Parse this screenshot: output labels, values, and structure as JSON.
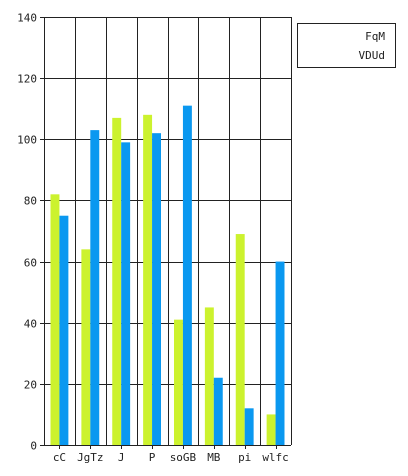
{
  "chart_data": {
    "type": "bar",
    "categories": [
      "cC",
      "JgTz",
      "J",
      "P",
      "soGB",
      "MB",
      "pi",
      "wlfc"
    ],
    "series": [
      {
        "name": "FqM",
        "color": "#ccf22e",
        "values": [
          82,
          64,
          107,
          108,
          41,
          45,
          69,
          10
        ]
      },
      {
        "name": "VDUd",
        "color": "#0a98f0",
        "values": [
          75,
          103,
          99,
          102,
          111,
          22,
          12,
          60
        ]
      }
    ],
    "yticks": [
      0,
      20,
      40,
      60,
      80,
      100,
      120,
      140
    ],
    "ylim": [
      0,
      140
    ],
    "grid": true,
    "legend_position": "top-right",
    "title": "",
    "xlabel": "",
    "ylabel": ""
  }
}
